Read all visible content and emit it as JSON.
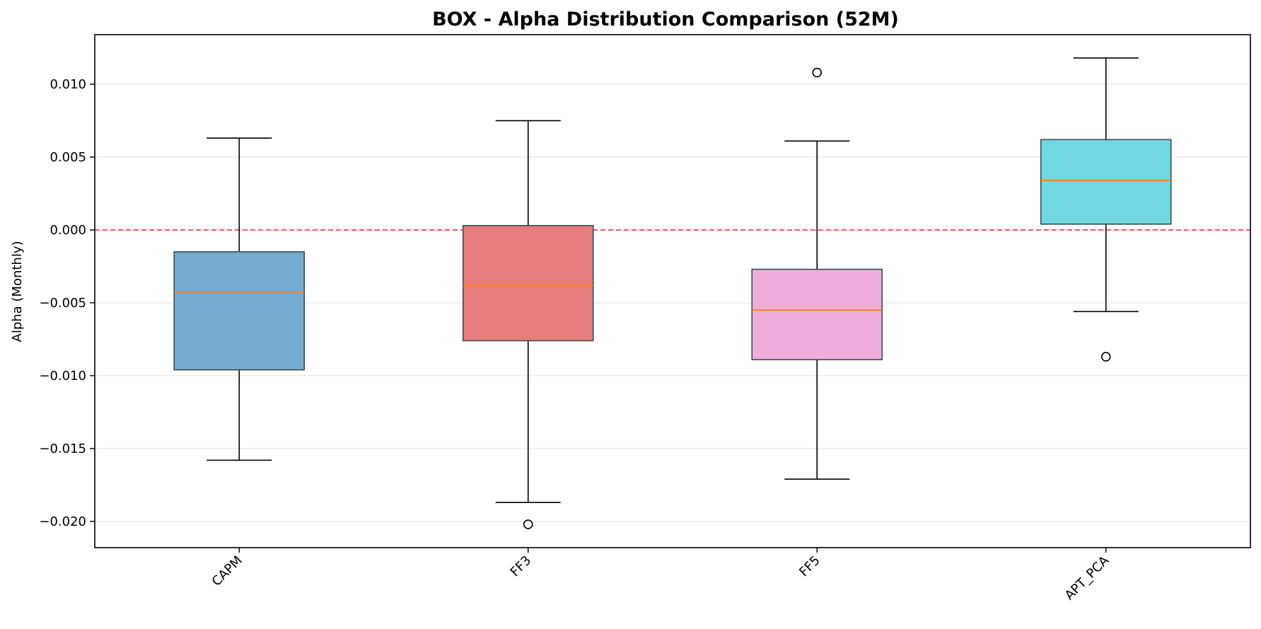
{
  "chart_data": {
    "type": "box",
    "title": "BOX - Alpha Distribution Comparison (52M)",
    "xlabel": "",
    "ylabel": "Alpha (Monthly)",
    "ylim": [
      -0.0218,
      0.0134
    ],
    "yticks": [
      0.01,
      0.005,
      0.0,
      -0.005,
      -0.01,
      -0.015,
      -0.02
    ],
    "ytick_labels": [
      "0.010",
      "0.005",
      "0.000",
      "−0.005",
      "−0.010",
      "−0.015",
      "−0.020"
    ],
    "grid": {
      "y": true,
      "x": false
    },
    "reference_line": {
      "y": 0.0,
      "color": "#e8262a",
      "style": "dashed"
    },
    "categories": [
      "CAPM",
      "FF3",
      "FF5",
      "APT_PCA"
    ],
    "boxes": [
      {
        "category": "CAPM",
        "whisker_low": -0.0158,
        "q1": -0.0096,
        "median": -0.0043,
        "q3": -0.0015,
        "whisker_high": 0.0063,
        "outliers": [],
        "color": "#76acd1"
      },
      {
        "category": "FF3",
        "whisker_low": -0.0187,
        "q1": -0.0076,
        "median": -0.0038,
        "q3": 0.0003,
        "whisker_high": 0.0075,
        "outliers": [
          -0.0202
        ],
        "color": "#e77d7d"
      },
      {
        "category": "FF5",
        "whisker_low": -0.0171,
        "q1": -0.0089,
        "median": -0.0055,
        "q3": -0.0027,
        "whisker_high": 0.0061,
        "outliers": [
          0.0108
        ],
        "color": "#efaddb"
      },
      {
        "category": "APT_PCA",
        "whisker_low": -0.0056,
        "q1": 0.0004,
        "median": 0.0034,
        "q3": 0.0062,
        "whisker_high": 0.0118,
        "outliers": [
          -0.0087
        ],
        "color": "#71d7e3"
      }
    ],
    "median_color": "#ff7f0e",
    "box_edge_color": "#3b4a50"
  }
}
